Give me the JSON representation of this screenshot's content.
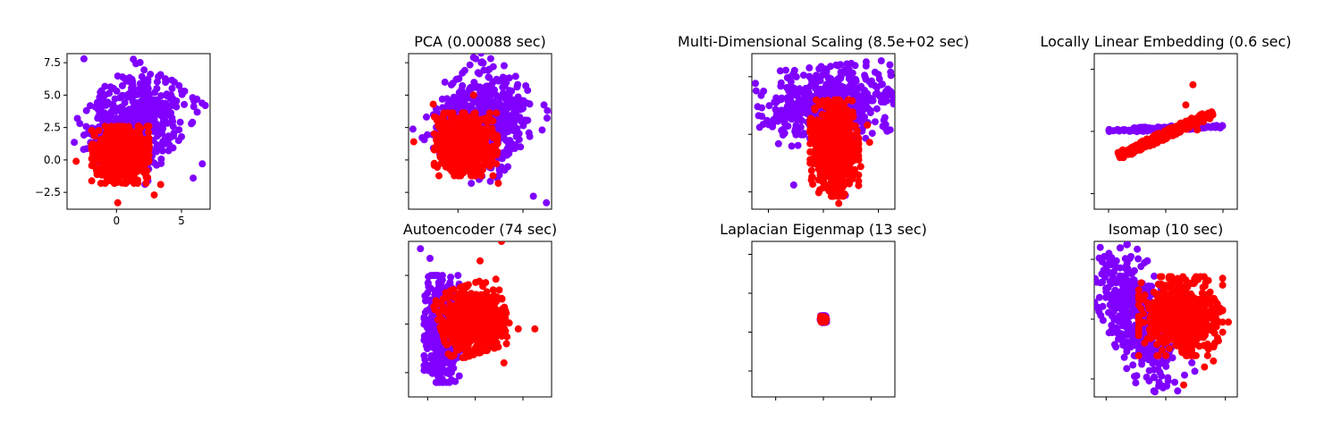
{
  "figure": {
    "colors": {
      "class_a": "#8000ff",
      "class_b": "#ff0000"
    }
  },
  "chart_data": [
    {
      "type": "scatter",
      "title": "",
      "xlim": [
        -3.8,
        7.2
      ],
      "ylim": [
        -3.8,
        8.2
      ],
      "xticks": [
        0,
        5
      ],
      "xtick_labels": [
        "0",
        "5"
      ],
      "yticks": [
        -2.5,
        0,
        2.5,
        5,
        7.5
      ],
      "ytick_labels": [
        "−2.5",
        "0.0",
        "2.5",
        "5.0",
        "7.5"
      ],
      "series": [
        {
          "color": "#8000ff",
          "cluster": {
            "center": [
              1.5,
              3.0
            ],
            "spread": [
              1.6,
              1.9
            ],
            "rotation": -0.65,
            "n": 550
          },
          "extremes": [
            [
              -2.5,
              7.8
            ],
            [
              6.6,
              -0.3
            ],
            [
              5.9,
              -1.4
            ],
            [
              -3.0,
              3.2
            ]
          ]
        },
        {
          "color": "#ff0000",
          "cluster": {
            "center": [
              0.3,
              0.4
            ],
            "spread": [
              1.0,
              1.0
            ],
            "rotation": 0,
            "n": 650
          },
          "extremes": [
            [
              0.1,
              -3.3
            ],
            [
              2.9,
              -2.7
            ],
            [
              -3.1,
              -0.1
            ],
            [
              3.4,
              -1.9
            ]
          ]
        }
      ]
    },
    {
      "type": "scatter",
      "title": "PCA (0.00088 sec)",
      "xlim": [
        -3.8,
        7.2
      ],
      "ylim": [
        -3.8,
        8.2
      ],
      "xticks": [
        0,
        5
      ],
      "xtick_labels": [
        "",
        ""
      ],
      "yticks": [
        -2.5,
        0,
        2.5,
        5,
        7.5
      ],
      "ytick_labels": [
        "",
        "",
        "",
        "",
        ""
      ],
      "series": [
        {
          "color": "#8000ff",
          "cluster": {
            "center": [
              2.0,
              3.0
            ],
            "spread": [
              1.7,
              1.9
            ],
            "rotation": -0.75,
            "n": 550
          },
          "extremes": [
            [
              1.2,
              7.9
            ],
            [
              6.8,
              -3.3
            ],
            [
              5.8,
              -2.8
            ],
            [
              -1.0,
              6.0
            ]
          ]
        },
        {
          "color": "#ff0000",
          "cluster": {
            "center": [
              0.6,
              1.2
            ],
            "spread": [
              1.1,
              1.1
            ],
            "rotation": 0,
            "n": 650
          },
          "extremes": [
            [
              -3.4,
              1.4
            ],
            [
              -1.9,
              4.3
            ],
            [
              1.2,
              5.0
            ],
            [
              3.1,
              -1.8
            ]
          ]
        }
      ]
    },
    {
      "type": "scatter",
      "title": "Multi-Dimensional Scaling (8.5e+02 sec)",
      "xlim": [
        -6.5,
        6.5
      ],
      "ylim": [
        -6.5,
        7.0
      ],
      "xticks": [
        -5,
        0,
        5
      ],
      "xtick_labels": [
        "",
        "",
        ""
      ],
      "yticks": [
        -5,
        0,
        5
      ],
      "ytick_labels": [
        "",
        "",
        ""
      ],
      "series": [
        {
          "color": "#8000ff",
          "cluster": {
            "center": [
              0.2,
              2.6
            ],
            "spread": [
              2.8,
              1.5
            ],
            "rotation": 0.1,
            "n": 550
          },
          "extremes": [
            [
              -5.6,
              2.3
            ],
            [
              5.0,
              5.2
            ],
            [
              -2.7,
              -4.4
            ],
            [
              2.0,
              -5.3
            ]
          ]
        },
        {
          "color": "#ff0000",
          "cluster": {
            "center": [
              1.0,
              -1.2
            ],
            "spread": [
              1.0,
              1.9
            ],
            "rotation": 0,
            "n": 650
          },
          "extremes": [
            [
              4.2,
              -0.7
            ],
            [
              4.0,
              0.8
            ],
            [
              3.4,
              -2.8
            ],
            [
              1.4,
              -6.0
            ]
          ]
        }
      ]
    },
    {
      "type": "scatter",
      "title": "Locally Linear Embedding (0.6 sec)",
      "xlim": [
        -0.05,
        0.05
      ],
      "ylim": [
        -0.05,
        0.05
      ],
      "xticks": [
        -0.04,
        0.0,
        0.04
      ],
      "xtick_labels": [
        "",
        "",
        ""
      ],
      "yticks": [
        -0.04,
        0.0,
        0.04
      ],
      "ytick_labels": [
        "",
        "",
        ""
      ],
      "series": [
        {
          "color": "#8000ff",
          "cluster": {
            "center": [
              0.0,
              0.002
            ],
            "spread": [
              0.018,
              0.0006
            ],
            "rotation": 0.04,
            "n": 260
          },
          "extremes": [
            [
              -0.03,
              0.001
            ],
            [
              0.03,
              0.003
            ]
          ]
        },
        {
          "color": "#ff0000",
          "cluster": {
            "center": [
              0.0,
              -0.002
            ],
            "spread": [
              0.016,
              0.0012
            ],
            "rotation": 0.4,
            "n": 650
          },
          "extremes": [
            [
              0.014,
              0.017
            ],
            [
              0.018,
              0.008
            ],
            [
              0.019,
              0.03
            ],
            [
              -0.025,
              -0.014
            ],
            [
              0.022,
              0.001
            ]
          ]
        }
      ]
    },
    {
      "type": "scatter",
      "title": "Autoencoder (74 sec)",
      "xlim": [
        -1.4,
        1.6
      ],
      "ylim": [
        -1.5,
        1.7
      ],
      "xticks": [
        -1,
        0,
        1
      ],
      "xtick_labels": [
        "",
        "",
        ""
      ],
      "yticks": [
        -1,
        0,
        1
      ],
      "ytick_labels": [
        "",
        "",
        ""
      ],
      "series": [
        {
          "color": "#8000ff",
          "cluster": {
            "center": [
              -0.7,
              -0.1
            ],
            "spread": [
              0.17,
              0.5
            ],
            "rotation": 0,
            "n": 550
          },
          "extremes": [
            [
              -1.15,
              1.55
            ],
            [
              -0.95,
              1.35
            ],
            [
              -0.5,
              -1.15
            ]
          ]
        },
        {
          "color": "#ff0000",
          "cluster": {
            "center": [
              -0.05,
              0.1
            ],
            "spread": [
              0.32,
              0.32
            ],
            "rotation": 0.3,
            "n": 650
          },
          "extremes": [
            [
              1.25,
              -0.1
            ],
            [
              0.55,
              1.7
            ],
            [
              0.6,
              -0.8
            ],
            [
              0.9,
              -0.1
            ],
            [
              0.1,
              1.3
            ]
          ]
        }
      ]
    },
    {
      "type": "scatter",
      "title": "Laplacian Eigenmap (13 sec)",
      "xlim": [
        -0.06,
        0.06
      ],
      "ylim": [
        -0.06,
        0.06
      ],
      "xticks": [
        -0.04,
        0.0,
        0.04
      ],
      "xtick_labels": [
        "",
        "",
        ""
      ],
      "yticks": [
        -0.04,
        -0.01,
        0.02,
        0.05
      ],
      "ytick_labels": [
        "",
        "",
        "",
        ""
      ],
      "series": [
        {
          "color": "#8000ff",
          "cluster": {
            "center": [
              0.0,
              0.0
            ],
            "spread": [
              0.0012,
              0.0012
            ],
            "rotation": 0,
            "n": 150
          },
          "extremes": []
        },
        {
          "color": "#ff0000",
          "cluster": {
            "center": [
              0.0,
              0.0
            ],
            "spread": [
              0.001,
              0.001
            ],
            "rotation": 0,
            "n": 150
          },
          "extremes": []
        }
      ]
    },
    {
      "type": "scatter",
      "title": "Isomap (10 sec)",
      "xlim": [
        -1.2,
        1.2
      ],
      "ylim": [
        -1.3,
        1.3
      ],
      "xticks": [
        -1,
        0,
        1
      ],
      "xtick_labels": [
        "",
        "",
        ""
      ],
      "yticks": [
        -1,
        0,
        1
      ],
      "ytick_labels": [
        "",
        "",
        ""
      ],
      "series": [
        {
          "color": "#8000ff",
          "cluster": {
            "center": [
              -0.45,
              0.0
            ],
            "spread": [
              0.25,
              0.55
            ],
            "rotation": 0.45,
            "n": 550
          },
          "extremes": [
            [
              -1.1,
              1.2
            ],
            [
              -0.2,
              -1.2
            ],
            [
              0.2,
              -1.2
            ],
            [
              -1.0,
              0.9
            ]
          ]
        },
        {
          "color": "#ff0000",
          "cluster": {
            "center": [
              0.25,
              0.05
            ],
            "spread": [
              0.32,
              0.3
            ],
            "rotation": 0,
            "n": 650
          },
          "extremes": [
            [
              1.05,
              -0.05
            ],
            [
              0.8,
              -0.7
            ],
            [
              0.65,
              -0.8
            ],
            [
              0.3,
              -1.1
            ]
          ]
        }
      ]
    }
  ]
}
